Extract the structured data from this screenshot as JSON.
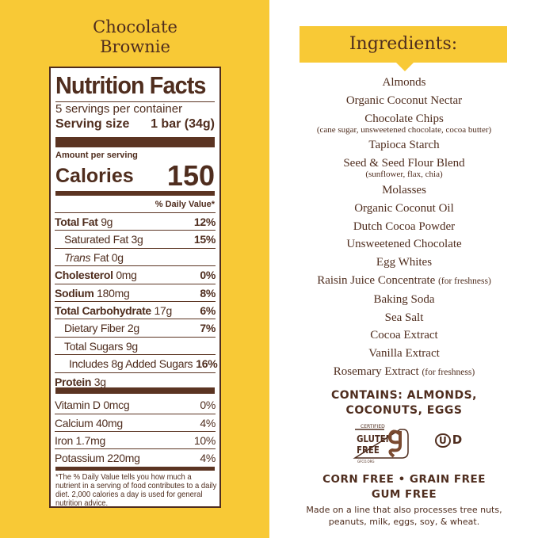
{
  "flavor": {
    "line1": "Chocolate",
    "line2": "Brownie"
  },
  "nutrition": {
    "title": "Nutrition Facts",
    "servings": "5 servings per container",
    "serving_size_label": "Serving size",
    "serving_size_value": "1 bar (34g)",
    "amount_per_serving": "Amount per serving",
    "calories_label": "Calories",
    "calories_value": "150",
    "daily_value_header": "% Daily Value*",
    "rows": [
      {
        "label": "Total Fat",
        "amount": "9g",
        "pct": "12%"
      },
      {
        "label": "Saturated Fat",
        "amount": "3g",
        "pct": "15%"
      },
      {
        "label": "Trans",
        "label_suffix": "Fat",
        "amount": "0g",
        "pct": ""
      },
      {
        "label": "Cholesterol",
        "amount": "0mg",
        "pct": "0%"
      },
      {
        "label": "Sodium",
        "amount": "180mg",
        "pct": "8%"
      },
      {
        "label": "Total Carbohydrate",
        "amount": "17g",
        "pct": "6%"
      },
      {
        "label": "Dietary Fiber",
        "amount": "2g",
        "pct": "7%"
      },
      {
        "label": "Total Sugars",
        "amount": "9g",
        "pct": ""
      },
      {
        "label": "Includes 8g Added Sugars",
        "amount": "",
        "pct": "16%"
      },
      {
        "label": "Protein",
        "amount": "3g",
        "pct": ""
      }
    ],
    "vitamins": [
      {
        "label": "Vitamin D 0mcg",
        "pct": "0%"
      },
      {
        "label": "Calcium 40mg",
        "pct": "4%"
      },
      {
        "label": "Iron 1.7mg",
        "pct": "10%"
      },
      {
        "label": "Potassium 220mg",
        "pct": "4%"
      }
    ],
    "footnote": "The % Daily Value tells you how much a nutrient in a serving of food contributes to a daily diet. 2,000 calories a day is used for general nutrition advice."
  },
  "ingredients": {
    "title": "Ingredients:",
    "items": [
      {
        "name": "Almonds"
      },
      {
        "name": "Organic Coconut Nectar"
      },
      {
        "name": "Chocolate Chips",
        "sub": "(cane sugar, unsweetened chocolate, cocoa butter)"
      },
      {
        "name": "Tapioca Starch"
      },
      {
        "name": "Seed & Seed Flour Blend",
        "sub": "(sunflower, flax, chia)"
      },
      {
        "name": "Molasses"
      },
      {
        "name": "Organic Coconut Oil"
      },
      {
        "name": "Dutch Cocoa Powder"
      },
      {
        "name": "Unsweetened Chocolate"
      },
      {
        "name": "Egg Whites"
      },
      {
        "name": "Raisin Juice Concentrate",
        "note": "(for freshness)"
      },
      {
        "name": "Baking Soda"
      },
      {
        "name": "Sea Salt"
      },
      {
        "name": "Cocoa Extract"
      },
      {
        "name": "Vanilla Extract"
      },
      {
        "name": "Rosemary Extract",
        "note": "(for freshness)"
      }
    ]
  },
  "contains": {
    "line1": "CONTAINS: ALMONDS,",
    "line2": "COCONUTS, EGGS"
  },
  "badges": {
    "gf_certified": "CERTIFIED",
    "gf_line1": "GLUTEN",
    "gf_line2": "FREE",
    "gf_site": "GFCO.ORG",
    "kosher": "D"
  },
  "free_from": {
    "line1": "CORN FREE • GRAIN FREE",
    "line2": "GUM FREE"
  },
  "allergen_note": {
    "line1": "Made on a line that also processes tree nuts,",
    "line2": "peanuts, milk, eggs, soy, & wheat."
  },
  "colors": {
    "yellow": "#f8c936",
    "brown": "#4f2d1e"
  }
}
